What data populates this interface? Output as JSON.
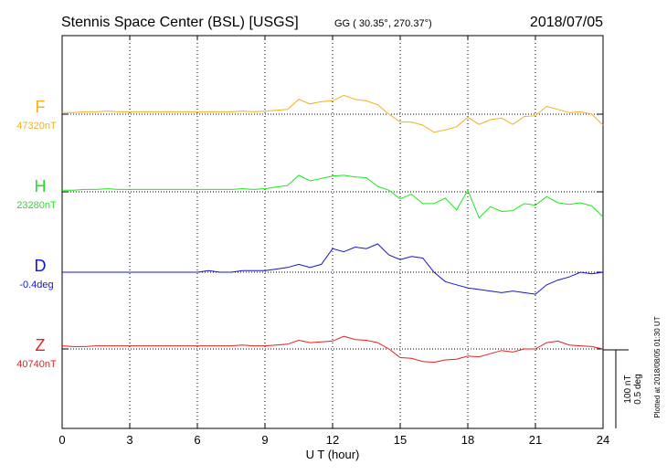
{
  "header": {
    "title": "Stennis Space Center (BSL)  [USGS]",
    "coords": "GG ( 30.35°, 270.37°)",
    "date": "2018/07/05"
  },
  "plotted_note": "Plotted at 2018/08/05 01:30 UT",
  "scale_bar": {
    "line1": "100 nT",
    "line2": "0.5 deg"
  },
  "chart_data": {
    "type": "line",
    "title": "Stennis Space Center (BSL)  [USGS]",
    "xlabel": "U T (hour)",
    "ylabel": "",
    "xlim": [
      0,
      24
    ],
    "xticks": [
      0,
      3,
      6,
      9,
      12,
      15,
      18,
      21,
      24
    ],
    "xtick_labels": [
      "0",
      "3",
      "6",
      "9",
      "12",
      "15",
      "18",
      "21",
      "24"
    ],
    "grid": "vertical dotted lines every 3 hours; dotted baseline per trace",
    "scale_note": "vertical scale: 100 nT (F, H, Z) or 0.5 deg (D) per scale-bar length",
    "series": [
      {
        "name": "F",
        "baseline_label": "47320nT",
        "baseline_value": 47320,
        "unit": "nT",
        "color": "#f2b01e",
        "x": [
          0,
          0.5,
          1,
          1.5,
          2,
          2.5,
          3,
          3.5,
          4,
          4.5,
          5,
          5.5,
          6,
          6.5,
          7,
          7.5,
          8,
          8.5,
          9,
          9.5,
          10,
          10.5,
          11,
          11.5,
          12,
          12.5,
          13,
          13.5,
          14,
          14.5,
          15,
          15.5,
          16,
          16.5,
          17,
          17.5,
          18,
          18.5,
          19,
          19.5,
          20,
          20.5,
          21,
          21.5,
          22,
          22.5,
          23,
          23.5,
          24
        ],
        "values": [
          47322,
          47322,
          47323,
          47323,
          47324,
          47323,
          47323,
          47323,
          47323,
          47323,
          47323,
          47323,
          47323,
          47323,
          47323,
          47323,
          47324,
          47323,
          47324,
          47325,
          47326,
          47339,
          47333,
          47336,
          47337,
          47344,
          47339,
          47337,
          47332,
          47320,
          47310,
          47310,
          47306,
          47297,
          47300,
          47304,
          47316,
          47307,
          47313,
          47315,
          47307,
          47317,
          47318,
          47330,
          47326,
          47322,
          47323,
          47320,
          47306
        ]
      },
      {
        "name": "H",
        "baseline_label": "23280nT",
        "baseline_value": 23280,
        "unit": "nT",
        "color": "#1ee61e",
        "x": [
          0,
          0.5,
          1,
          1.5,
          2,
          2.5,
          3,
          3.5,
          4,
          4.5,
          5,
          5.5,
          6,
          6.5,
          7,
          7.5,
          8,
          8.5,
          9,
          9.5,
          10,
          10.5,
          11,
          11.5,
          12,
          12.5,
          13,
          13.5,
          14,
          14.5,
          15,
          15.5,
          16,
          16.5,
          17,
          17.5,
          18,
          18.5,
          19,
          19.5,
          20,
          20.5,
          21,
          21.5,
          22,
          22.5,
          23,
          23.5,
          24
        ],
        "values": [
          23282,
          23282,
          23283,
          23283,
          23284,
          23283,
          23283,
          23283,
          23283,
          23283,
          23283,
          23283,
          23283,
          23283,
          23283,
          23283,
          23284,
          23283,
          23284,
          23286,
          23288,
          23301,
          23294,
          23297,
          23300,
          23301,
          23299,
          23298,
          23287,
          23282,
          23271,
          23277,
          23265,
          23265,
          23272,
          23257,
          23282,
          23247,
          23261,
          23255,
          23256,
          23265,
          23263,
          23274,
          23266,
          23264,
          23266,
          23262,
          23248
        ]
      },
      {
        "name": "D",
        "baseline_label": "-0.4deg",
        "baseline_value": -0.4,
        "unit": "deg",
        "color": "#1414d2",
        "x": [
          0,
          0.5,
          1,
          1.5,
          2,
          2.5,
          3,
          3.5,
          4,
          4.5,
          5,
          5.5,
          6,
          6.5,
          7,
          7.5,
          8,
          8.5,
          9,
          9.5,
          10,
          10.5,
          11,
          11.5,
          12,
          12.5,
          13,
          13.5,
          14,
          14.5,
          15,
          15.5,
          16,
          16.5,
          17,
          17.5,
          18,
          18.5,
          19,
          19.5,
          20,
          20.5,
          21,
          21.5,
          22,
          22.5,
          23,
          23.5,
          24
        ],
        "values": [
          -0.4,
          -0.4,
          -0.4,
          -0.4,
          -0.4,
          -0.4,
          -0.4,
          -0.4,
          -0.4,
          -0.4,
          -0.4,
          -0.4,
          -0.4,
          -0.39,
          -0.4,
          -0.4,
          -0.39,
          -0.39,
          -0.39,
          -0.38,
          -0.37,
          -0.35,
          -0.37,
          -0.35,
          -0.25,
          -0.27,
          -0.24,
          -0.25,
          -0.22,
          -0.29,
          -0.32,
          -0.3,
          -0.31,
          -0.4,
          -0.46,
          -0.48,
          -0.5,
          -0.51,
          -0.52,
          -0.53,
          -0.52,
          -0.53,
          -0.54,
          -0.48,
          -0.45,
          -0.43,
          -0.4,
          -0.41,
          -0.4
        ]
      },
      {
        "name": "Z",
        "baseline_label": "40740nT",
        "baseline_value": 40740,
        "unit": "nT",
        "color": "#e61e1e",
        "x": [
          0,
          0.5,
          1,
          1.5,
          2,
          2.5,
          3,
          3.5,
          4,
          4.5,
          5,
          5.5,
          6,
          6.5,
          7,
          7.5,
          8,
          8.5,
          9,
          9.5,
          10,
          10.5,
          11,
          11.5,
          12,
          12.5,
          13,
          13.5,
          14,
          14.5,
          15,
          15.5,
          16,
          16.5,
          17,
          17.5,
          18,
          18.5,
          19,
          19.5,
          20,
          20.5,
          21,
          21.5,
          22,
          22.5,
          23,
          23.5,
          24
        ],
        "values": [
          40744,
          40743,
          40743,
          40744,
          40744,
          40744,
          40744,
          40744,
          40744,
          40744,
          40744,
          40744,
          40744,
          40744,
          40744,
          40744,
          40745,
          40744,
          40744,
          40745,
          40746,
          40751,
          40748,
          40749,
          40750,
          40756,
          40752,
          40751,
          40748,
          40740,
          40729,
          40728,
          40724,
          40723,
          40726,
          40727,
          40731,
          40730,
          40734,
          40738,
          40736,
          40740,
          40740,
          40748,
          40750,
          40745,
          40744,
          40743,
          40740
        ]
      }
    ]
  }
}
